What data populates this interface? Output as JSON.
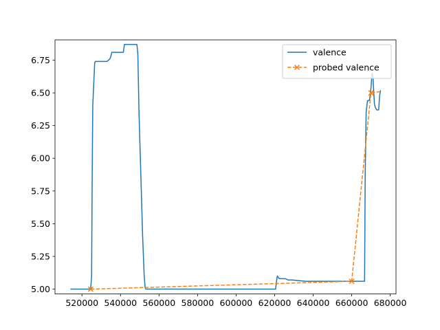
{
  "chart_data": {
    "type": "line",
    "title": "",
    "xlabel": "",
    "ylabel": "",
    "xlim": [
      506000,
      683000
    ],
    "ylim": [
      4.963,
      6.905
    ],
    "x_ticks": [
      520000,
      540000,
      560000,
      580000,
      600000,
      620000,
      640000,
      660000,
      680000
    ],
    "y_ticks": [
      5.0,
      5.25,
      5.5,
      5.75,
      6.0,
      6.25,
      6.5,
      6.75
    ],
    "x_tick_labels": [
      "520000",
      "540000",
      "560000",
      "580000",
      "600000",
      "620000",
      "640000",
      "660000",
      "680000"
    ],
    "y_tick_labels": [
      "5.00",
      "5.25",
      "5.50",
      "5.75",
      "6.00",
      "6.25",
      "6.50",
      "6.75"
    ],
    "grid": false,
    "legend_position": "upper right",
    "series": [
      {
        "name": "valence",
        "color": "#1f77b4",
        "style": "solid",
        "marker": "none",
        "x": [
          514000,
          524500,
          525000,
          525300,
          525600,
          525900,
          526200,
          526600,
          527000,
          533000,
          534500,
          535000,
          535500,
          541500,
          542000,
          548000,
          548500,
          549000,
          549600,
          550500,
          551500,
          552300,
          552800,
          553200,
          560000,
          600000,
          620500,
          620900,
          621400,
          621900,
          622400,
          625500,
          627000,
          629000,
          636000,
          640000,
          650000,
          665000,
          666700,
          667000,
          667500,
          668200,
          668800,
          669300,
          670100,
          670500,
          671000,
          671400,
          671800,
          672200,
          673000,
          674000,
          674500,
          675000
        ],
        "y": [
          5.0,
          5.0,
          5.1,
          5.85,
          6.4,
          6.5,
          6.6,
          6.73,
          6.74,
          6.74,
          6.76,
          6.78,
          6.81,
          6.81,
          6.87,
          6.87,
          6.87,
          6.8,
          6.35,
          5.9,
          5.4,
          5.1,
          5.01,
          5.0,
          5.0,
          5.0,
          5.0,
          5.05,
          5.1,
          5.09,
          5.08,
          5.08,
          5.07,
          5.07,
          5.06,
          5.06,
          5.06,
          5.06,
          5.06,
          5.85,
          6.35,
          6.44,
          6.44,
          6.45,
          6.55,
          6.65,
          6.63,
          6.52,
          6.42,
          6.39,
          6.37,
          6.37,
          6.48,
          6.52
        ]
      },
      {
        "name": "probed valence",
        "color": "#ff7f0e",
        "style": "dashed",
        "marker": "x",
        "x": [
          524500,
          660000,
          670000,
          675000
        ],
        "y": [
          5.0,
          5.06,
          6.5,
          6.51
        ],
        "marked_points": [
          0,
          1,
          2
        ]
      }
    ]
  }
}
